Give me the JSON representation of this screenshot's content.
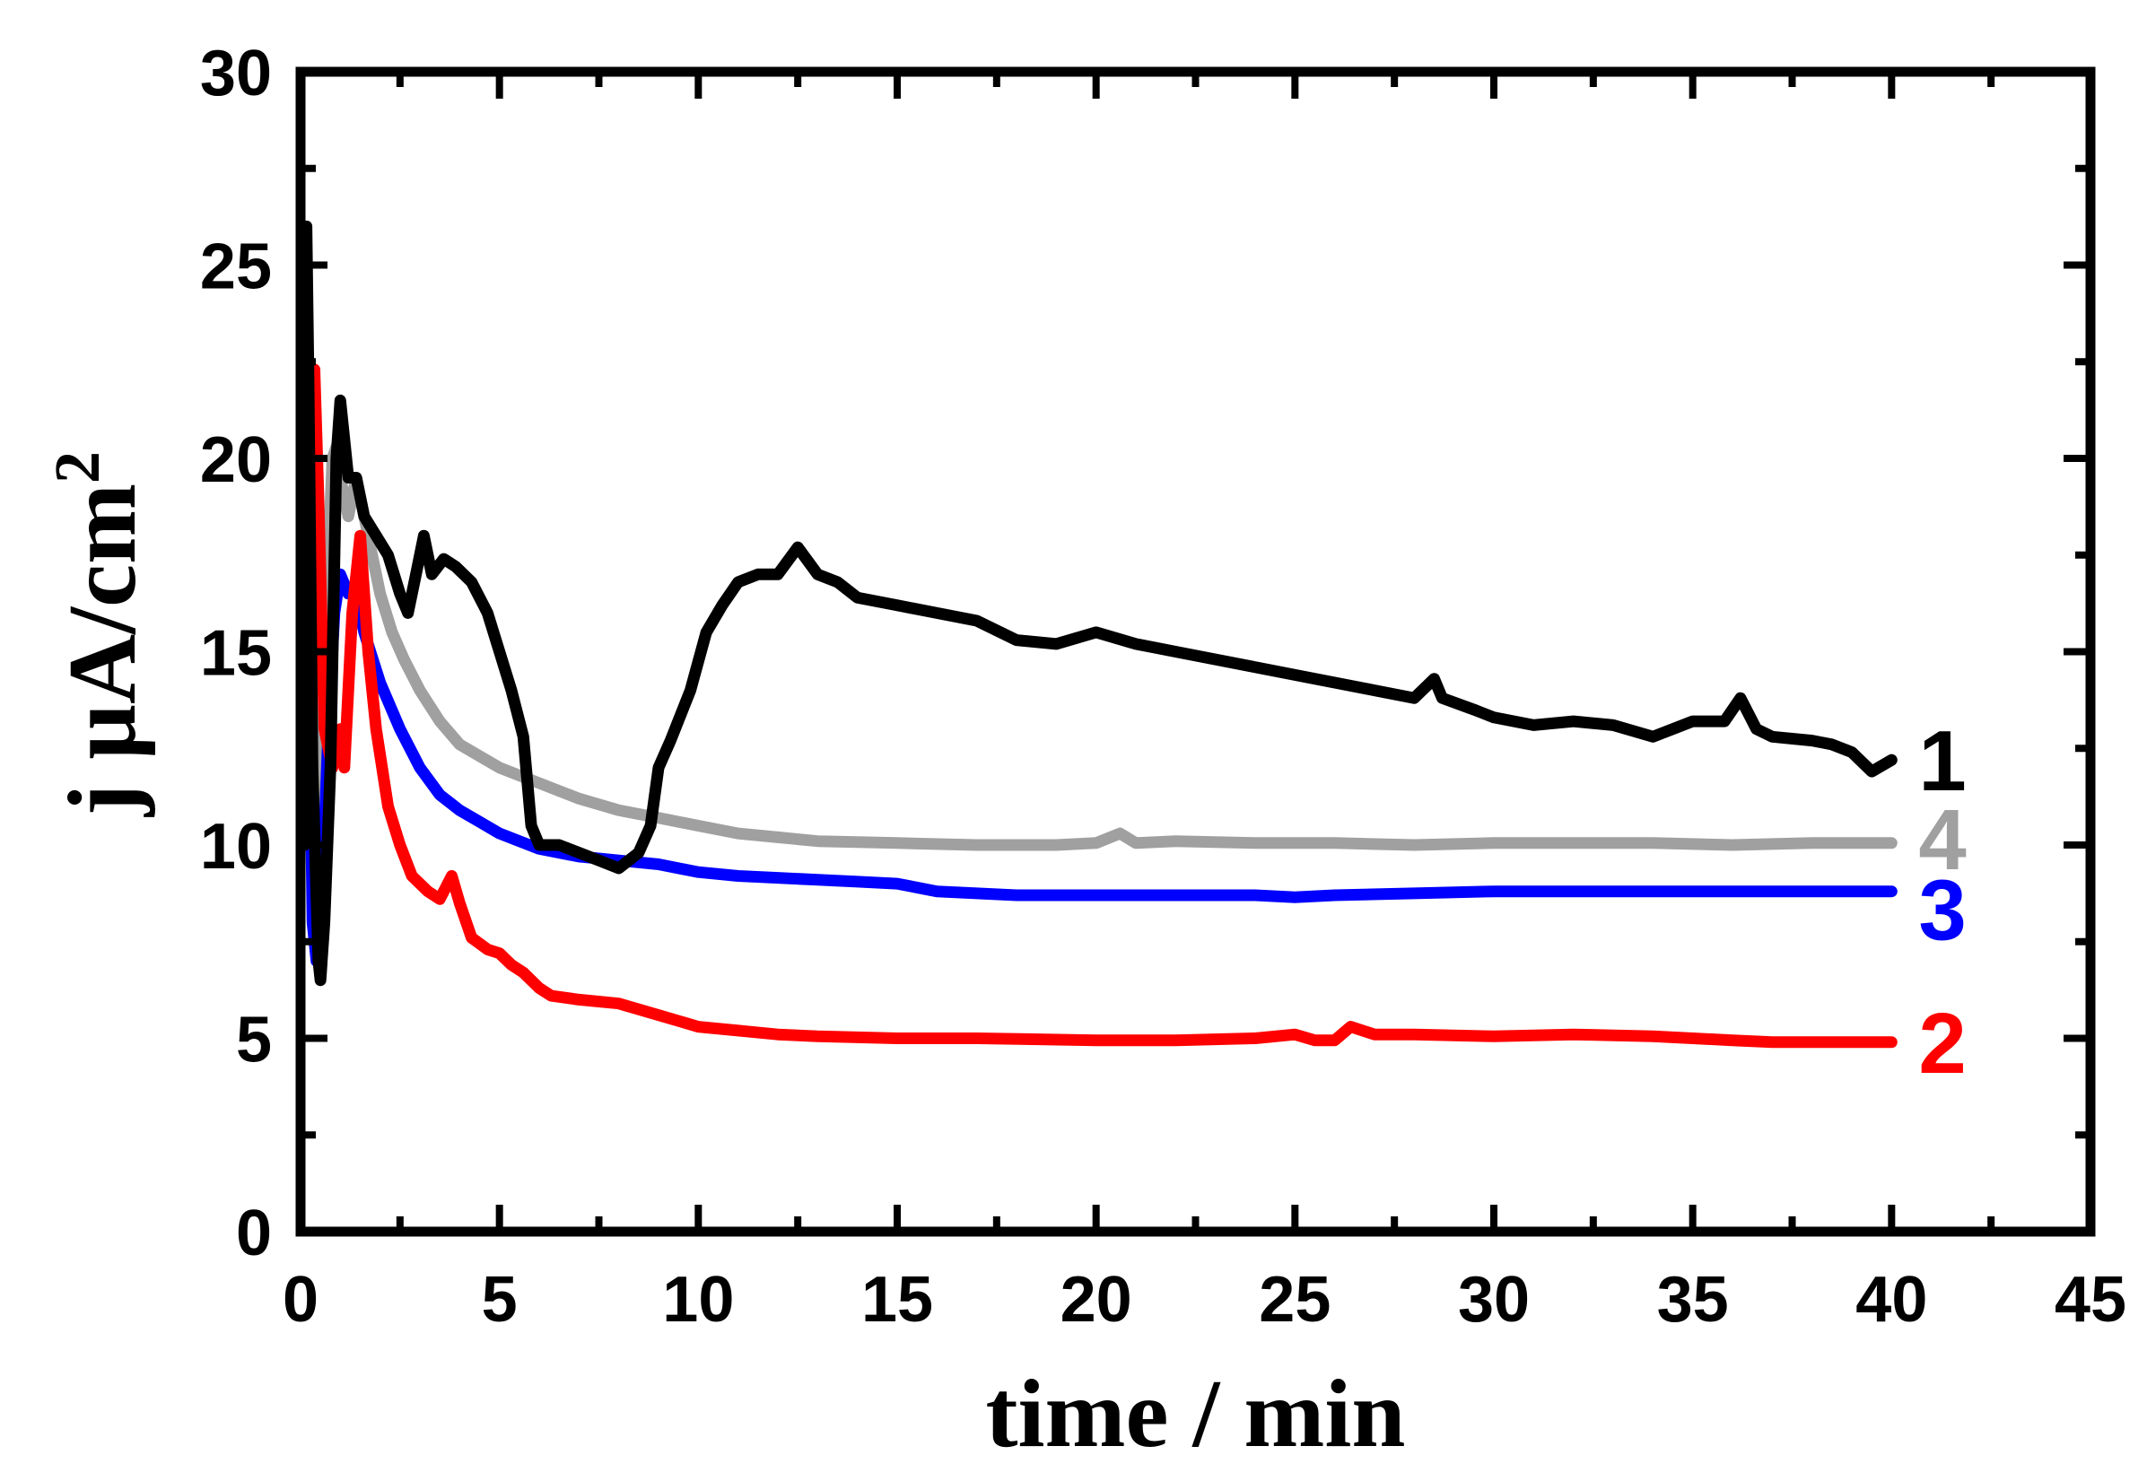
{
  "chart_data": {
    "type": "line",
    "xlabel": "time / min",
    "ylabel": "j µA/cm",
    "ylabel_superscript": "2",
    "xlim": [
      0,
      45
    ],
    "ylim": [
      0,
      30
    ],
    "xticks": [
      0,
      5,
      10,
      15,
      20,
      25,
      30,
      35,
      40,
      45
    ],
    "yticks": [
      0,
      5,
      10,
      15,
      20,
      25,
      30
    ],
    "grid": false,
    "legend": "none; series labelled at right end of lines",
    "series": [
      {
        "name": "1",
        "color": "#000000",
        "points": [
          [
            0.1,
            10
          ],
          [
            0.15,
            26
          ],
          [
            0.2,
            22
          ],
          [
            0.3,
            12
          ],
          [
            0.45,
            7
          ],
          [
            0.5,
            6.5
          ],
          [
            0.6,
            8
          ],
          [
            0.75,
            12
          ],
          [
            0.9,
            20
          ],
          [
            1.0,
            21.5
          ],
          [
            1.2,
            19.5
          ],
          [
            1.4,
            19.5
          ],
          [
            1.6,
            18.5
          ],
          [
            1.9,
            18
          ],
          [
            2.2,
            17.5
          ],
          [
            2.5,
            16.5
          ],
          [
            2.7,
            16
          ],
          [
            2.9,
            17
          ],
          [
            3.1,
            18
          ],
          [
            3.3,
            17
          ],
          [
            3.6,
            17.4
          ],
          [
            3.9,
            17.2
          ],
          [
            4.3,
            16.8
          ],
          [
            4.7,
            16
          ],
          [
            5.0,
            15
          ],
          [
            5.3,
            14
          ],
          [
            5.6,
            12.8
          ],
          [
            5.8,
            10.5
          ],
          [
            6.0,
            10
          ],
          [
            6.5,
            10
          ],
          [
            7.0,
            9.8
          ],
          [
            7.5,
            9.6
          ],
          [
            8.0,
            9.4
          ],
          [
            8.5,
            9.8
          ],
          [
            8.8,
            10.5
          ],
          [
            9.0,
            12
          ],
          [
            9.3,
            12.7
          ],
          [
            9.8,
            14
          ],
          [
            10.2,
            15.5
          ],
          [
            10.6,
            16.2
          ],
          [
            11.0,
            16.8
          ],
          [
            11.5,
            17
          ],
          [
            12.0,
            17
          ],
          [
            12.5,
            17.7
          ],
          [
            13.0,
            17
          ],
          [
            13.5,
            16.8
          ],
          [
            14.0,
            16.4
          ],
          [
            15.0,
            16.2
          ],
          [
            16.0,
            16
          ],
          [
            17.0,
            15.8
          ],
          [
            18.0,
            15.3
          ],
          [
            19.0,
            15.2
          ],
          [
            20.0,
            15.5
          ],
          [
            21.0,
            15.2
          ],
          [
            22.0,
            15
          ],
          [
            23.0,
            14.8
          ],
          [
            24.0,
            14.6
          ],
          [
            25.0,
            14.4
          ],
          [
            26.0,
            14.2
          ],
          [
            27.0,
            14
          ],
          [
            28.0,
            13.8
          ],
          [
            28.5,
            14.3
          ],
          [
            28.7,
            13.8
          ],
          [
            29.5,
            13.5
          ],
          [
            30.0,
            13.3
          ],
          [
            31.0,
            13.1
          ],
          [
            32.0,
            13.2
          ],
          [
            33.0,
            13.1
          ],
          [
            34.0,
            12.8
          ],
          [
            35.0,
            13.2
          ],
          [
            35.8,
            13.2
          ],
          [
            36.2,
            13.8
          ],
          [
            36.6,
            13
          ],
          [
            37.0,
            12.8
          ],
          [
            38.0,
            12.7
          ],
          [
            38.5,
            12.6
          ],
          [
            39.0,
            12.4
          ],
          [
            39.5,
            11.9
          ],
          [
            40.0,
            12.2
          ]
        ]
      },
      {
        "name": "2",
        "color": "#ff0000",
        "points": [
          [
            0.2,
            15
          ],
          [
            0.35,
            22.3
          ],
          [
            0.45,
            19
          ],
          [
            0.6,
            13
          ],
          [
            0.8,
            12
          ],
          [
            1.0,
            13
          ],
          [
            1.1,
            12
          ],
          [
            1.3,
            16
          ],
          [
            1.5,
            18
          ],
          [
            1.7,
            15
          ],
          [
            1.9,
            13
          ],
          [
            2.2,
            11
          ],
          [
            2.5,
            10
          ],
          [
            2.8,
            9.2
          ],
          [
            3.2,
            8.8
          ],
          [
            3.5,
            8.6
          ],
          [
            3.8,
            9.2
          ],
          [
            4.0,
            8.5
          ],
          [
            4.3,
            7.6
          ],
          [
            4.7,
            7.3
          ],
          [
            5.0,
            7.2
          ],
          [
            5.3,
            6.9
          ],
          [
            5.6,
            6.7
          ],
          [
            6.0,
            6.3
          ],
          [
            6.3,
            6.1
          ],
          [
            7.0,
            6
          ],
          [
            8.0,
            5.9
          ],
          [
            9.0,
            5.6
          ],
          [
            10.0,
            5.3
          ],
          [
            11.0,
            5.2
          ],
          [
            12.0,
            5.1
          ],
          [
            13.0,
            5.05
          ],
          [
            15.0,
            5
          ],
          [
            17.0,
            5
          ],
          [
            20.0,
            4.95
          ],
          [
            22.0,
            4.95
          ],
          [
            24.0,
            5
          ],
          [
            25.0,
            5.1
          ],
          [
            25.5,
            4.95
          ],
          [
            26.0,
            4.95
          ],
          [
            26.4,
            5.3
          ],
          [
            27.0,
            5.1
          ],
          [
            28.0,
            5.1
          ],
          [
            30.0,
            5.05
          ],
          [
            32.0,
            5.1
          ],
          [
            34.0,
            5.05
          ],
          [
            35.0,
            5
          ],
          [
            36.0,
            4.95
          ],
          [
            37.0,
            4.9
          ],
          [
            38.0,
            4.9
          ],
          [
            40.0,
            4.9
          ]
        ]
      },
      {
        "name": "3",
        "color": "#0000ff",
        "points": [
          [
            0.2,
            15.5
          ],
          [
            0.3,
            8
          ],
          [
            0.4,
            7
          ],
          [
            0.55,
            9
          ],
          [
            0.7,
            13
          ],
          [
            0.85,
            16
          ],
          [
            1.0,
            17
          ],
          [
            1.2,
            16.5
          ],
          [
            1.4,
            16.5
          ],
          [
            1.6,
            15.5
          ],
          [
            2.0,
            14.2
          ],
          [
            2.5,
            13
          ],
          [
            3.0,
            12
          ],
          [
            3.5,
            11.3
          ],
          [
            4.0,
            10.9
          ],
          [
            4.5,
            10.6
          ],
          [
            5.0,
            10.3
          ],
          [
            5.5,
            10.1
          ],
          [
            6.0,
            9.9
          ],
          [
            7.0,
            9.7
          ],
          [
            8.0,
            9.6
          ],
          [
            9.0,
            9.5
          ],
          [
            10.0,
            9.3
          ],
          [
            11.0,
            9.2
          ],
          [
            12.0,
            9.15
          ],
          [
            13.0,
            9.1
          ],
          [
            14.0,
            9.05
          ],
          [
            15.0,
            9
          ],
          [
            16.0,
            8.8
          ],
          [
            17.0,
            8.75
          ],
          [
            18.0,
            8.7
          ],
          [
            20.0,
            8.7
          ],
          [
            22.0,
            8.7
          ],
          [
            24.0,
            8.7
          ],
          [
            25.0,
            8.65
          ],
          [
            26.0,
            8.7
          ],
          [
            28.0,
            8.75
          ],
          [
            30.0,
            8.8
          ],
          [
            31.0,
            8.8
          ],
          [
            32.0,
            8.8
          ],
          [
            34.0,
            8.8
          ],
          [
            36.0,
            8.8
          ],
          [
            38.0,
            8.8
          ],
          [
            40.0,
            8.8
          ]
        ]
      },
      {
        "name": "4",
        "color": "#a0a0a0",
        "points": [
          [
            0.4,
            10.5
          ],
          [
            0.6,
            15
          ],
          [
            0.8,
            20
          ],
          [
            0.9,
            20.3
          ],
          [
            1.0,
            19.5
          ],
          [
            1.2,
            18.5
          ],
          [
            1.4,
            19.5
          ],
          [
            1.6,
            18.5
          ],
          [
            1.8,
            17.5
          ],
          [
            2.0,
            16.5
          ],
          [
            2.3,
            15.5
          ],
          [
            2.6,
            14.8
          ],
          [
            3.0,
            14
          ],
          [
            3.5,
            13.2
          ],
          [
            4.0,
            12.6
          ],
          [
            4.5,
            12.3
          ],
          [
            5.0,
            12
          ],
          [
            5.5,
            11.8
          ],
          [
            6.0,
            11.6
          ],
          [
            7.0,
            11.2
          ],
          [
            8.0,
            10.9
          ],
          [
            9.0,
            10.7
          ],
          [
            10.0,
            10.5
          ],
          [
            11.0,
            10.3
          ],
          [
            12.0,
            10.2
          ],
          [
            13.0,
            10.1
          ],
          [
            15.0,
            10.05
          ],
          [
            17.0,
            10
          ],
          [
            19.0,
            10
          ],
          [
            20.0,
            10.05
          ],
          [
            20.6,
            10.3
          ],
          [
            21.0,
            10.05
          ],
          [
            22.0,
            10.1
          ],
          [
            24.0,
            10.05
          ],
          [
            26.0,
            10.05
          ],
          [
            28.0,
            10
          ],
          [
            30.0,
            10.05
          ],
          [
            32.0,
            10.05
          ],
          [
            34.0,
            10.05
          ],
          [
            36.0,
            10
          ],
          [
            38.0,
            10.05
          ],
          [
            40.0,
            10.05
          ]
        ]
      }
    ]
  }
}
